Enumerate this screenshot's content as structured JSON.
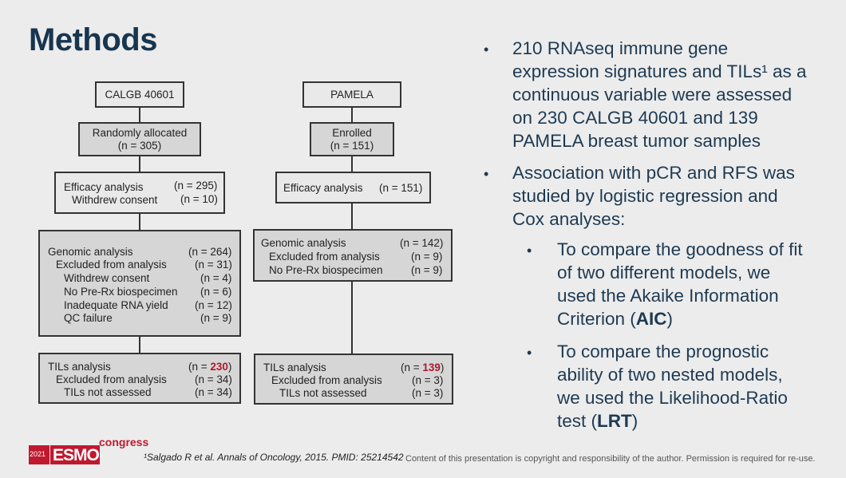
{
  "title": "Methods",
  "left_flow": {
    "b1": "CALGB 40601",
    "b2_line1": "Randomly allocated",
    "b2_line2": "(n = 305)",
    "b3": [
      {
        "label": "Efficacy analysis",
        "n": "(n = 295)"
      },
      {
        "label": "Withdrew consent",
        "n": "(n = 10)"
      }
    ],
    "b4": [
      {
        "label": "Genomic analysis",
        "n": "(n = 264)"
      },
      {
        "label": "Excluded from analysis",
        "n": "(n = 31)"
      },
      {
        "label": "Withdrew consent",
        "n": "(n = 4)"
      },
      {
        "label": "No Pre-Rx biospecimen",
        "n": "(n = 6)"
      },
      {
        "label": "Inadequate RNA yield",
        "n": "(n = 12)"
      },
      {
        "label": "QC failure",
        "n": "(n = 9)"
      }
    ],
    "b5": {
      "r0_label": "TILs analysis",
      "r0_open": "(n = ",
      "r0_num": "230",
      "r0_close": ")",
      "r1_label": "Excluded from analysis",
      "r1_n": "(n = 34)",
      "r2_label": "TILs not assessed",
      "r2_n": "(n = 34)"
    }
  },
  "right_flow": {
    "b1": "PAMELA",
    "b2_line1": "Enrolled",
    "b2_line2": "(n = 151)",
    "b3": {
      "label": "Efficacy analysis",
      "n": "(n = 151)"
    },
    "b4": [
      {
        "label": "Genomic analysis",
        "n": "(n = 142)"
      },
      {
        "label": "Excluded from analysis",
        "n": "(n = 9)"
      },
      {
        "label": "No Pre-Rx biospecimen",
        "n": "(n = 9)"
      }
    ],
    "b5": {
      "r0_label": "TILs analysis",
      "r0_open": "(n = ",
      "r0_num": "139",
      "r0_close": ")",
      "r1_label": "Excluded from analysis",
      "r1_n": "(n = 3)",
      "r2_label": "TILs not assessed",
      "r2_n": "(n = 3)"
    }
  },
  "bullets": {
    "b1": [
      "210 RNAseq immune gene",
      "expression signatures and TILs¹ as a",
      "continuous variable were assessed",
      "on 230 CALGB 40601 and 139",
      "PAMELA breast tumor samples"
    ],
    "b2": [
      "Association with pCR and RFS was",
      "studied by logistic regression and",
      "Cox analyses:"
    ],
    "s1": [
      "To compare the goodness of fit",
      "of two different models, we",
      "used the Akaike Information"
    ],
    "s1_last_pre": "Criterion (",
    "s1_bold": "AIC",
    "s1_last_post": ")",
    "s2": [
      "To compare the prognostic",
      "ability of two nested models,",
      "we used the Likelihood-Ratio"
    ],
    "s2_last_pre": "test (",
    "s2_bold": "LRT",
    "s2_last_post": ")",
    "marker": "•"
  },
  "footer": {
    "logo_year": "2021",
    "logo_text": "ESMO",
    "logo_sub": "congress",
    "reference": "¹Salgado R et al. Annals of Oncology, 2015. PMID: 25214542",
    "copyright": "Content of this presentation is copyright and responsibility of the author. Permission is required for re-use."
  },
  "colors": {
    "title": "#17354f",
    "accent_red": "#b0162a",
    "logo_red": "#c0182e",
    "box_gray": "#d6d6d6"
  }
}
